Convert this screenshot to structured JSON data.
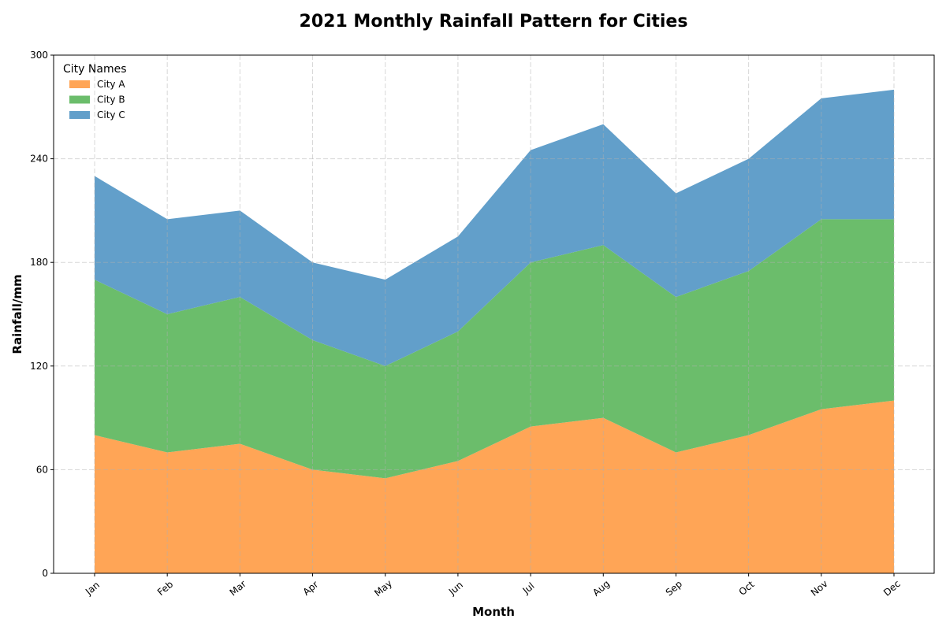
{
  "chart_data": {
    "type": "area",
    "stacked": true,
    "title": "2021 Monthly Rainfall Pattern for Cities",
    "xlabel": "Month",
    "ylabel": "Rainfall/mm",
    "categories": [
      "Jan",
      "Feb",
      "Mar",
      "Apr",
      "May",
      "Jun",
      "Jul",
      "Aug",
      "Sep",
      "Oct",
      "Nov",
      "Dec"
    ],
    "ylim": [
      0,
      300
    ],
    "yticks": [
      0,
      60,
      120,
      180,
      240,
      300
    ],
    "grid": true,
    "legend": {
      "title": "City Names",
      "placement": "top-left"
    },
    "series": [
      {
        "name": "City A",
        "color": "#ffa556",
        "values": [
          80,
          70,
          75,
          60,
          55,
          65,
          85,
          90,
          70,
          80,
          95,
          100
        ]
      },
      {
        "name": "City B",
        "color": "#6bbd6b",
        "values": [
          90,
          80,
          85,
          75,
          65,
          75,
          95,
          100,
          90,
          95,
          110,
          105
        ]
      },
      {
        "name": "City C",
        "color": "#629fca",
        "values": [
          60,
          55,
          50,
          45,
          50,
          55,
          65,
          70,
          60,
          65,
          70,
          75
        ]
      }
    ]
  }
}
